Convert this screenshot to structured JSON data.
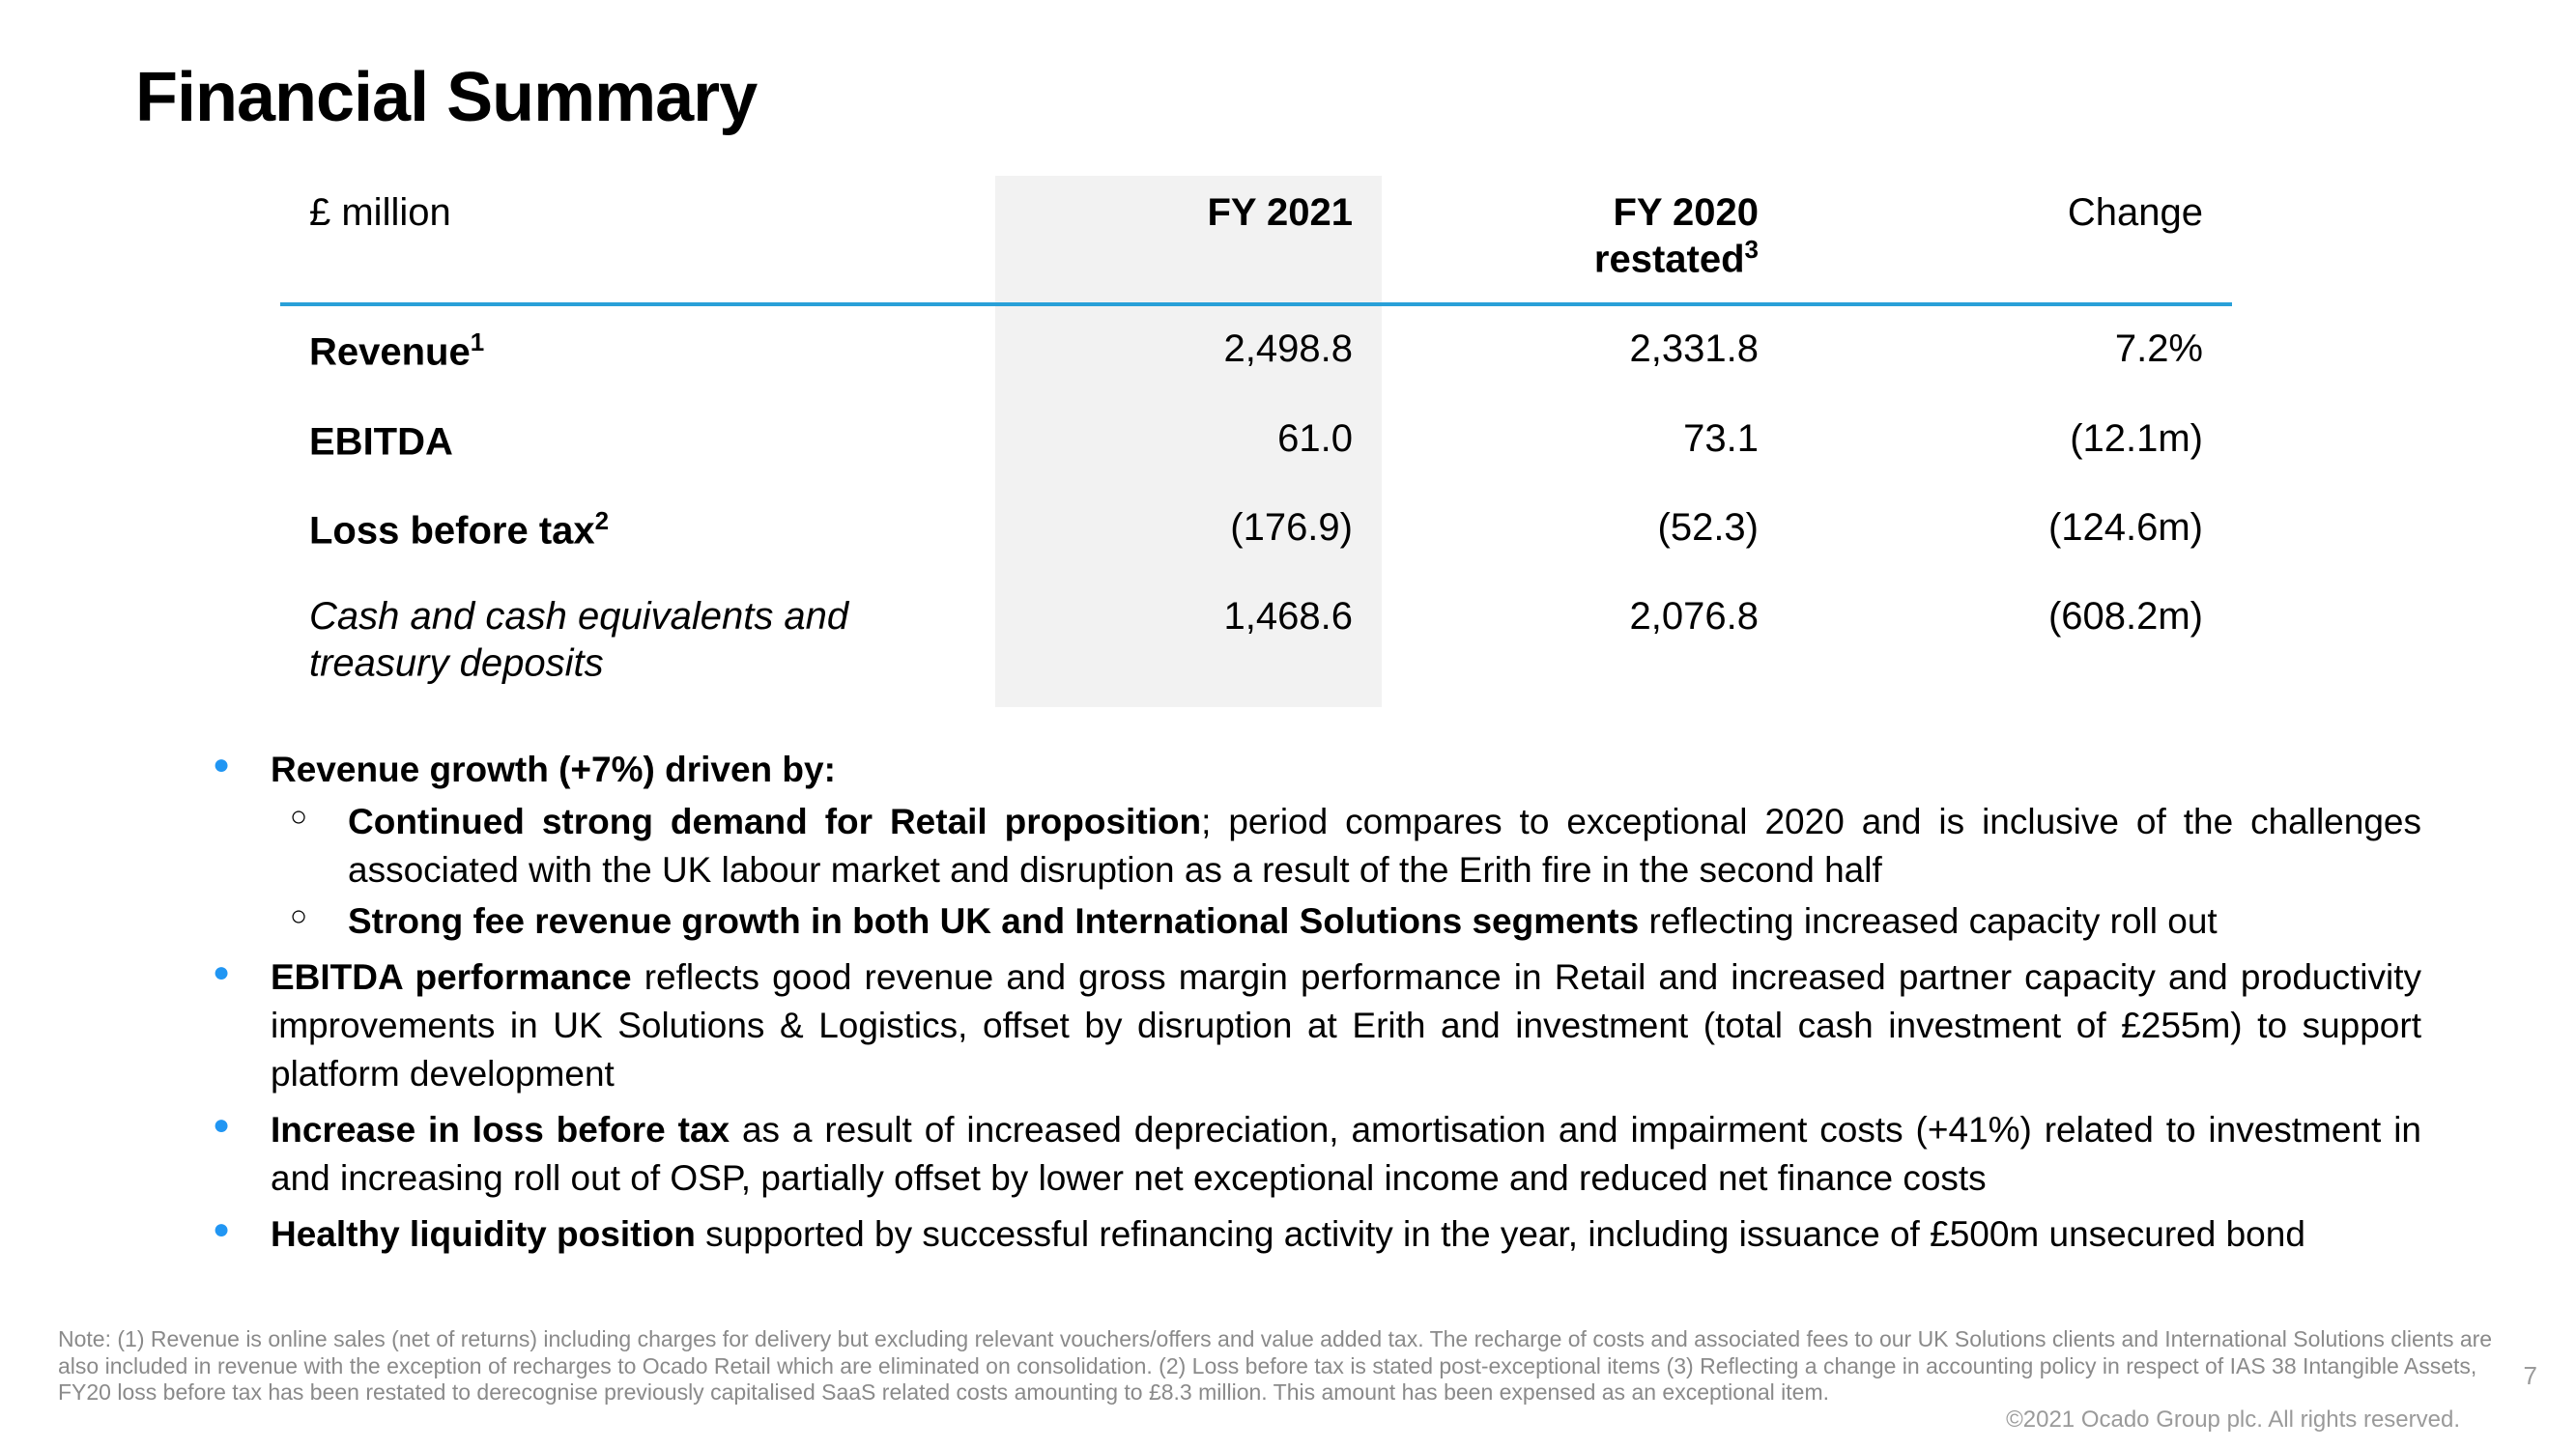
{
  "title": "Financial Summary",
  "table": {
    "unit_label": "£ million",
    "headers": {
      "fy21": "FY 2021",
      "fy20_line1": "FY 2020",
      "fy20_line2": "restated",
      "fy20_sup": "3",
      "change": "Change"
    },
    "rows": [
      {
        "label": "Revenue",
        "sup": "1",
        "fy21": "2,498.8",
        "fy20": "2,331.8",
        "change": "7.2%",
        "italic": false
      },
      {
        "label": "EBITDA",
        "sup": "",
        "fy21": "61.0",
        "fy20": "73.1",
        "change": "(12.1m)",
        "italic": false
      },
      {
        "label": "Loss before tax",
        "sup": "2",
        "fy21": "(176.9)",
        "fy20": "(52.3)",
        "change": "(124.6m)",
        "italic": false
      },
      {
        "label": "Cash and cash equivalents and treasury deposits",
        "sup": "",
        "fy21": "1,468.6",
        "fy20": "2,076.8",
        "change": "(608.2m)",
        "italic": true
      }
    ],
    "colors": {
      "highlight_bg": "#f2f2f2",
      "rule": "#29a0d8"
    }
  },
  "bullets": {
    "b1_lead": "Revenue growth (+7%) driven by:",
    "b1_sub1_bold": "Continued strong demand for Retail proposition",
    "b1_sub1_rest": "; period compares to exceptional 2020 and is inclusive of the challenges associated with the UK labour market and disruption as a result of the Erith fire in the second half",
    "b1_sub2_bold": "Strong fee revenue growth in both UK and International Solutions segments",
    "b1_sub2_rest": " reflecting increased capacity roll out",
    "b2_bold": "EBITDA performance",
    "b2_rest": " reflects good revenue and gross margin performance in Retail and increased partner capacity and productivity improvements in UK Solutions & Logistics, offset by disruption at Erith and investment (total cash investment of £255m) to support platform development",
    "b3_bold": "Increase in loss before tax",
    "b3_rest": " as a result of increased depreciation, amortisation and impairment costs (+41%) related to investment in and increasing roll out of OSP, partially offset by lower net exceptional income and reduced net finance costs",
    "b4_bold": "Healthy liquidity position",
    "b4_rest": " supported by successful refinancing activity in the year, including issuance of £500m unsecured bond"
  },
  "footnote": "Note: (1) Revenue is online sales (net of returns) including charges for delivery but excluding relevant vouchers/offers and value added tax. The recharge of costs and associated fees to our UK Solutions clients and International Solutions clients are also included in revenue with the exception of recharges to Ocado Retail which are eliminated on consolidation. (2) Loss before tax is stated post-exceptional items (3) Reflecting a change in accounting policy in respect of IAS 38 Intangible Assets, FY20 loss before tax has been restated to derecognise previously capitalised SaaS related costs amounting to £8.3 million. This amount has been expensed as an exceptional item.",
  "copyright": "©2021 Ocado Group plc. All rights reserved.",
  "page_number": "7"
}
